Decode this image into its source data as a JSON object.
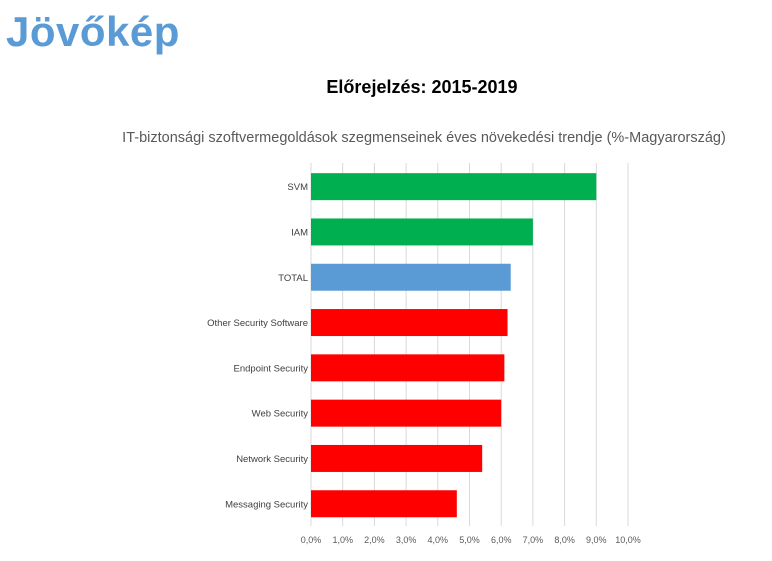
{
  "slide": {
    "title": "Jövőkép"
  },
  "chart_data": {
    "type": "bar",
    "orientation": "horizontal",
    "title": "Előrejelzés: 2015-2019",
    "subtitle": "IT-biztonsági szoftvermegoldások szegmenseinek éves növekedési trendje (%-Magyarország)",
    "categories": [
      "SVM",
      "IAM",
      "TOTAL",
      "Other Security Software",
      "Endpoint Security",
      "Web Security",
      "Network Security",
      "Messaging Security"
    ],
    "values": [
      9.0,
      7.0,
      6.3,
      6.2,
      6.1,
      6.0,
      5.4,
      4.6
    ],
    "colors": [
      "#00b050",
      "#00b050",
      "#5b9bd5",
      "#ff0000",
      "#ff0000",
      "#ff0000",
      "#ff0000",
      "#ff0000"
    ],
    "xlim": [
      0,
      10
    ],
    "xticks": [
      "0,0%",
      "1,0%",
      "2,0%",
      "3,0%",
      "4,0%",
      "5,0%",
      "6,0%",
      "7,0%",
      "8,0%",
      "9,0%",
      "10,0%"
    ],
    "grid": true,
    "legend": "none"
  }
}
